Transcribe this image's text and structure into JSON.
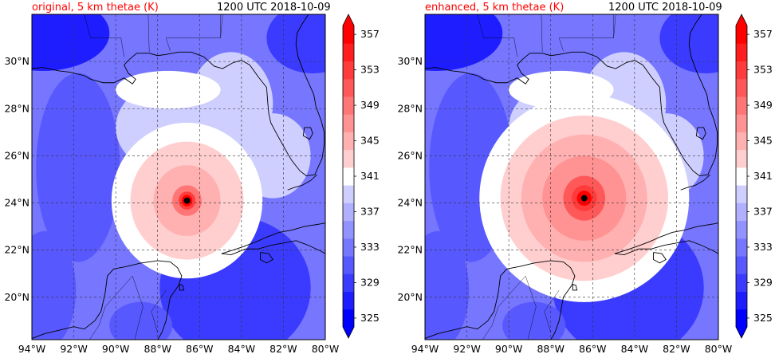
{
  "panels": [
    {
      "title_left": "original, 5 km thetae (K)",
      "title_right": "1200 UTC 2018-10-09",
      "storm_center": {
        "lon": -86.6,
        "lat": 24.1
      },
      "core_level": 345.5
    },
    {
      "title_left": "enhanced, 5 km thetae (K)",
      "title_right": "1200 UTC 2018-10-09",
      "storm_center": {
        "lon": -86.4,
        "lat": 24.2
      },
      "core_level": 349
    }
  ],
  "map": {
    "lon_range": [
      -94,
      -80
    ],
    "lat_range": [
      18.2,
      32
    ],
    "lon_ticks": [
      "94°W",
      "92°W",
      "90°W",
      "88°W",
      "86°W",
      "84°W",
      "82°W",
      "80°W"
    ],
    "lat_ticks": [
      "20°N",
      "22°N",
      "24°N",
      "26°N",
      "28°N",
      "30°N"
    ],
    "gridlines": "dashed"
  },
  "colorbar": {
    "levels": [
      325,
      327,
      329,
      331,
      333,
      335,
      337,
      339,
      341,
      343,
      345,
      347,
      349,
      351,
      353,
      355,
      357,
      359
    ],
    "tick_labels": [
      "325",
      "329",
      "333",
      "337",
      "341",
      "345",
      "349",
      "353",
      "357"
    ],
    "extend": "both",
    "colormap": "bwr",
    "low_color": "#0000ff",
    "high_color": "#ff0000"
  }
}
